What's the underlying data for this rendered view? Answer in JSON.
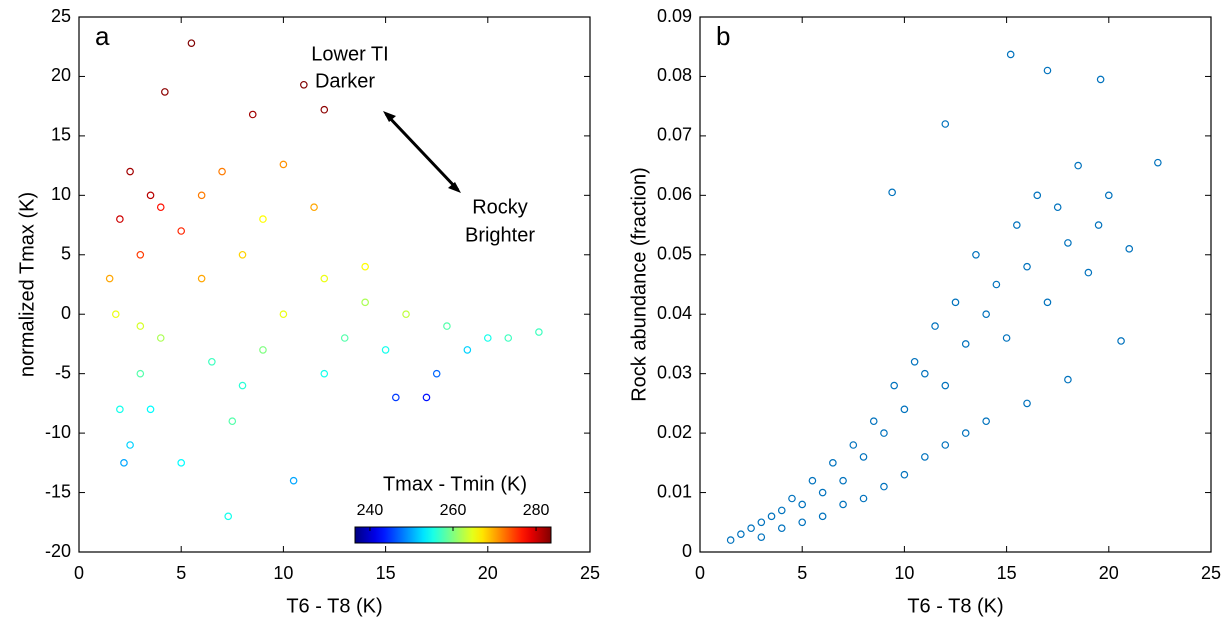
{
  "chart_data": [
    {
      "type": "scatter",
      "panel": "a",
      "xlabel": "T6 - T8 (K)",
      "ylabel": "normalized Tmax (K)",
      "xlim": [
        0,
        25
      ],
      "ylim": [
        -20,
        25
      ],
      "xticks": [
        0,
        5,
        10,
        15,
        20,
        25
      ],
      "yticks": [
        -20,
        -15,
        -10,
        -5,
        0,
        5,
        10,
        15,
        20,
        25
      ],
      "annotations": [
        "Lower TI",
        "Darker",
        "Rocky",
        "Brighter"
      ],
      "colormap": "jet",
      "clim": [
        236.4,
        283.6
      ],
      "colorbar_label": "Tmax - Tmin (K)",
      "colorbar_ticks": [
        240,
        260,
        280
      ],
      "series": [
        {
          "x": [
            1.5,
            2,
            2.5,
            3,
            3.5,
            4,
            2,
            2.5,
            3,
            1.8,
            5,
            5.5,
            4.2,
            6,
            6.5,
            7,
            7.5,
            8,
            8.5,
            9,
            10,
            10.5,
            11,
            11.5,
            12,
            12,
            13,
            14,
            15,
            15.5,
            16,
            17,
            17.5,
            18,
            19,
            20,
            21,
            22.5,
            7.3,
            5,
            3,
            4,
            6,
            8,
            9,
            12,
            14,
            2.2,
            3.5,
            10
          ],
          "y": [
            3,
            8,
            12,
            5,
            10,
            -2,
            -8,
            -11,
            -5,
            0,
            7,
            22.8,
            18.7,
            3,
            -4,
            12,
            -9,
            5,
            16.8,
            -3,
            0,
            -14,
            19.3,
            9,
            17.2,
            3,
            -2,
            1,
            -3,
            -7,
            0,
            -7,
            -5,
            -1,
            -3,
            -2,
            -2,
            -1.5,
            -17,
            -12.5,
            -1,
            9,
            10,
            -6,
            8,
            -5,
            4,
            -12.5,
            -8,
            12.6
          ],
          "c": [
            270,
            280,
            282,
            275,
            281,
            262,
            255,
            252,
            258,
            265,
            276,
            284,
            283,
            270,
            257,
            272,
            258,
            268,
            282,
            260,
            265,
            250,
            284,
            270,
            283,
            265,
            258,
            262,
            255,
            245,
            263,
            243,
            247,
            258,
            252,
            255,
            257,
            257,
            255,
            254,
            264,
            277,
            272,
            256,
            266,
            255,
            266,
            250,
            254,
            271
          ]
        }
      ]
    },
    {
      "type": "scatter",
      "panel": "b",
      "xlabel": "T6 - T8 (K)",
      "ylabel": "Rock abundance (fraction)",
      "xlim": [
        0,
        25
      ],
      "ylim": [
        0,
        0.09
      ],
      "xticks": [
        0,
        5,
        10,
        15,
        20,
        25
      ],
      "yticks": [
        0,
        0.01,
        0.02,
        0.03,
        0.04,
        0.05,
        0.06,
        0.07,
        0.08,
        0.09
      ],
      "series": [
        {
          "color": "#0072bd",
          "x": [
            1.5,
            2,
            2.5,
            3,
            3.5,
            4,
            4.5,
            5,
            5.5,
            6,
            6.5,
            7,
            7.5,
            8,
            8.5,
            9,
            9.5,
            10,
            10.5,
            11,
            11.5,
            12,
            12.5,
            13,
            13.5,
            14,
            14.5,
            15,
            15.5,
            16,
            16.5,
            17,
            17.5,
            18,
            18.5,
            19,
            19.5,
            20,
            21,
            22.4,
            15.2,
            17,
            19.6,
            12,
            9.4,
            3,
            4,
            5,
            6,
            7,
            8,
            9,
            10,
            11,
            12,
            13,
            14,
            16,
            18,
            20.6
          ],
          "y": [
            0.002,
            0.003,
            0.004,
            0.005,
            0.006,
            0.007,
            0.009,
            0.008,
            0.012,
            0.01,
            0.015,
            0.012,
            0.018,
            0.016,
            0.022,
            0.02,
            0.028,
            0.024,
            0.032,
            0.03,
            0.038,
            0.028,
            0.042,
            0.035,
            0.05,
            0.04,
            0.045,
            0.036,
            0.055,
            0.048,
            0.06,
            0.042,
            0.058,
            0.052,
            0.065,
            0.047,
            0.055,
            0.06,
            0.051,
            0.0655,
            0.0837,
            0.081,
            0.0795,
            0.072,
            0.0605,
            0.0025,
            0.004,
            0.005,
            0.006,
            0.008,
            0.009,
            0.011,
            0.013,
            0.016,
            0.018,
            0.02,
            0.022,
            0.025,
            0.029,
            0.0355
          ]
        }
      ]
    }
  ]
}
